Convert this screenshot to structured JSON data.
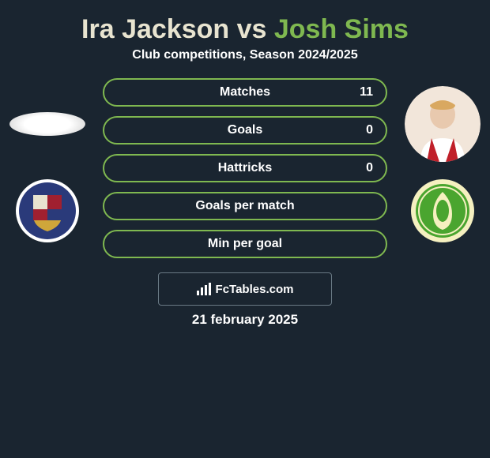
{
  "title": {
    "player1": "Ira Jackson",
    "vs": " vs ",
    "player2": "Josh Sims",
    "color1": "#e8e4d0",
    "color2": "#7fb850"
  },
  "subtitle": "Club competitions, Season 2024/2025",
  "accent_color": "#7fb850",
  "background_color": "#1a2530",
  "stats": [
    {
      "label": "Matches",
      "value": "11"
    },
    {
      "label": "Goals",
      "value": "0"
    },
    {
      "label": "Hattricks",
      "value": "0"
    },
    {
      "label": "Goals per match",
      "value": ""
    },
    {
      "label": "Min per goal",
      "value": ""
    }
  ],
  "watermark": "FcTables.com",
  "date": "21 february 2025",
  "left": {
    "player_bg": "#ffffff",
    "club_colors": {
      "shield_top": "#cfa63a",
      "shield_mid": "#a02030",
      "shield_blue": "#2a3a7a",
      "ring": "#ffffff"
    }
  },
  "right": {
    "player_bg": "#f2e6da",
    "club_colors": {
      "bg": "#4aa52f",
      "ring": "#f5f0c0",
      "inner": "#ffffff"
    }
  }
}
